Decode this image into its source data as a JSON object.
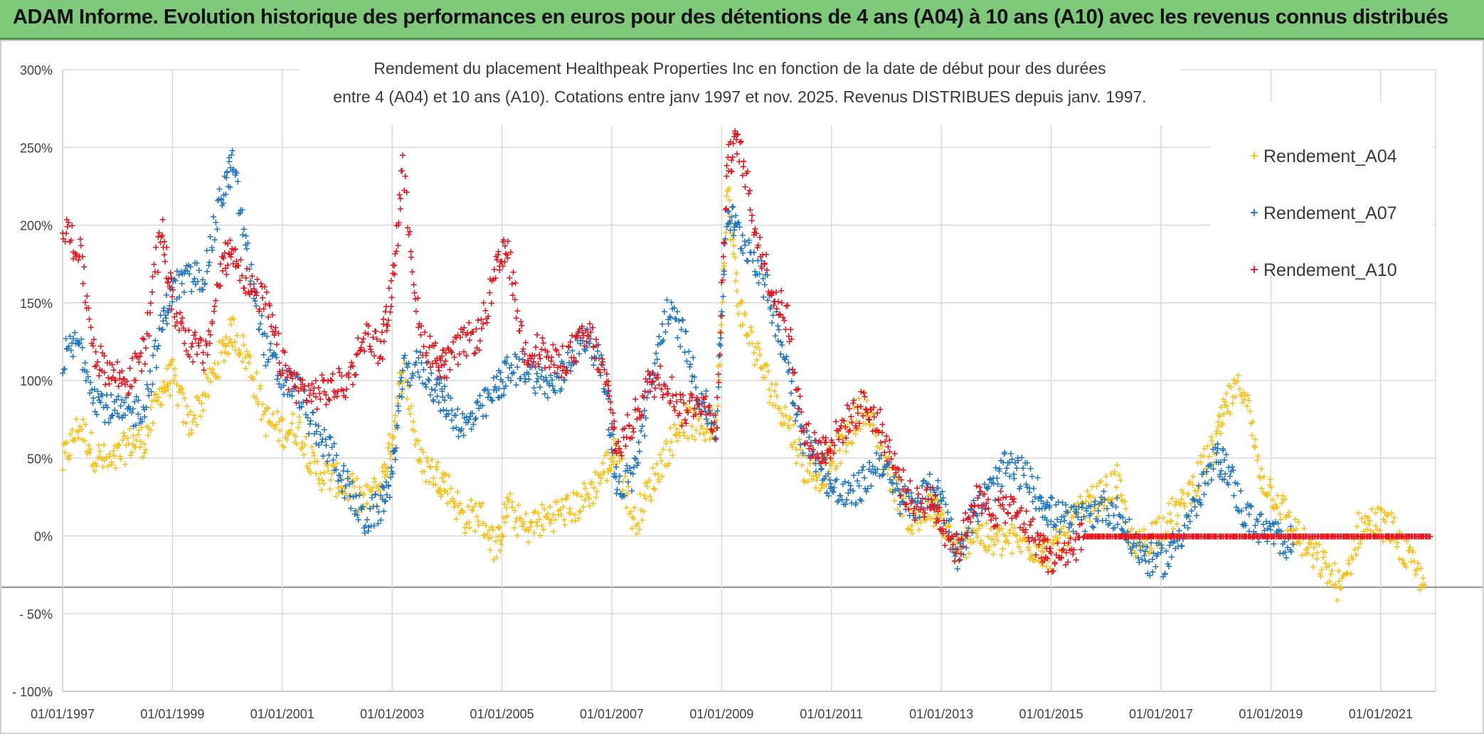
{
  "banner": {
    "title": "ADAM Informe. Evolution historique des performances en euros pour des détentions de 4 ans (A04) à 10 ans (A10) avec les revenus connus distribués"
  },
  "chart_data": {
    "type": "scatter",
    "title_line1": "Rendement du placement Healthpeak Properties Inc en fonction de la date de début pour des durées",
    "title_line2": "entre 4 (A04) et 10 ans (A10). Cotations entre janv 1997 et nov. 2025. Revenus DISTRIBUES depuis janv. 1997.",
    "xlabel": "",
    "ylabel": "",
    "xlim": [
      1997.0,
      2022.0
    ],
    "ylim": [
      -100,
      300
    ],
    "x_ticks": [
      "01/01/1997",
      "01/01/1999",
      "01/01/2001",
      "01/01/2003",
      "01/01/2005",
      "01/01/2007",
      "01/01/2009",
      "01/01/2011",
      "01/01/2013",
      "01/01/2015",
      "01/01/2017",
      "01/01/2019",
      "01/01/2021"
    ],
    "y_ticks": [
      "300%",
      "250%",
      "200%",
      "150%",
      "100%",
      "50%",
      "0%",
      "- 50%",
      "- 100%"
    ],
    "legend_position": "top-right",
    "grid": true,
    "series": [
      {
        "name": "Rendement_A04",
        "color": "#f5c21b",
        "x": [
          1997.0,
          1997.3,
          1997.6,
          1997.9,
          1998.2,
          1998.5,
          1998.8,
          1999.0,
          1999.3,
          1999.6,
          1999.9,
          2000.1,
          2000.4,
          2000.7,
          2001.0,
          2001.3,
          2001.6,
          2001.9,
          2002.2,
          2002.5,
          2002.8,
          2003.0,
          2003.2,
          2003.5,
          2003.8,
          2004.0,
          2004.3,
          2004.6,
          2004.9,
          2005.1,
          2005.4,
          2005.7,
          2006.0,
          2006.3,
          2006.6,
          2006.9,
          2007.1,
          2007.4,
          2007.7,
          2008.0,
          2008.3,
          2008.6,
          2008.9,
          2009.1,
          2009.3,
          2009.6,
          2009.9,
          2010.2,
          2010.5,
          2010.8,
          2011.0,
          2011.3,
          2011.6,
          2011.9,
          2012.2,
          2012.5,
          2012.8,
          2013.0,
          2013.3,
          2013.6,
          2013.9,
          2014.2,
          2014.5,
          2014.8,
          2015.0,
          2015.3,
          2015.6,
          2015.9,
          2016.2,
          2016.5,
          2016.8,
          2017.1,
          2017.4,
          2017.7,
          2018.0,
          2018.2,
          2018.5,
          2018.8,
          2019.1,
          2019.4,
          2019.7,
          2020.0,
          2020.3,
          2020.6,
          2020.9,
          2021.2,
          2021.5,
          2021.8
        ],
        "values": [
          47,
          72,
          52,
          46,
          60,
          62,
          95,
          103,
          72,
          92,
          118,
          133,
          112,
          75,
          68,
          70,
          42,
          38,
          32,
          22,
          33,
          63,
          112,
          48,
          40,
          33,
          12,
          15,
          -8,
          20,
          5,
          10,
          15,
          18,
          28,
          45,
          55,
          8,
          32,
          55,
          75,
          70,
          72,
          225,
          150,
          120,
          95,
          75,
          45,
          40,
          48,
          65,
          85,
          55,
          28,
          8,
          18,
          12,
          -12,
          5,
          -5,
          -2,
          -4,
          -8,
          -12,
          5,
          18,
          25,
          35,
          -10,
          0,
          10,
          20,
          40,
          60,
          85,
          98,
          40,
          25,
          5,
          -10,
          -20,
          -35,
          5,
          10,
          5,
          -15,
          -32
        ]
      },
      {
        "name": "Rendement_A07",
        "color": "#1f78c1",
        "x": [
          1997.0,
          1997.3,
          1997.6,
          1997.9,
          1998.2,
          1998.5,
          1998.8,
          1999.0,
          1999.3,
          1999.6,
          1999.9,
          2000.1,
          2000.4,
          2000.7,
          2001.0,
          2001.3,
          2001.6,
          2001.9,
          2002.2,
          2002.5,
          2002.8,
          2003.0,
          2003.2,
          2003.5,
          2003.8,
          2004.0,
          2004.3,
          2004.6,
          2004.9,
          2005.1,
          2005.4,
          2005.7,
          2006.0,
          2006.3,
          2006.6,
          2006.9,
          2007.1,
          2007.4,
          2007.7,
          2008.0,
          2008.3,
          2008.6,
          2008.9,
          2009.1,
          2009.3,
          2009.6,
          2009.9,
          2010.2,
          2010.5,
          2010.8,
          2011.0,
          2011.3,
          2011.6,
          2011.9,
          2012.2,
          2012.5,
          2012.8,
          2013.0,
          2013.3,
          2013.6,
          2013.9,
          2014.2,
          2014.5,
          2014.8,
          2015.0,
          2015.3,
          2015.6,
          2015.9,
          2016.2,
          2016.5,
          2016.8,
          2017.1,
          2017.4,
          2017.7,
          2018.0,
          2018.2,
          2018.5,
          2018.8,
          2019.1,
          2019.4
        ],
        "values": [
          115,
          125,
          90,
          80,
          78,
          85,
          135,
          160,
          165,
          170,
          220,
          240,
          175,
          120,
          100,
          95,
          65,
          55,
          30,
          10,
          20,
          40,
          105,
          110,
          95,
          85,
          70,
          80,
          95,
          105,
          110,
          100,
          95,
          120,
          130,
          95,
          30,
          40,
          95,
          145,
          130,
          90,
          70,
          210,
          195,
          180,
          150,
          110,
          60,
          50,
          30,
          25,
          35,
          50,
          25,
          20,
          30,
          25,
          -10,
          15,
          30,
          45,
          40,
          25,
          15,
          10,
          10,
          20,
          15,
          -5,
          -15,
          -15,
          5,
          25,
          50,
          45,
          15,
          5,
          0,
          -5
        ]
      },
      {
        "name": "Rendement_A10",
        "color": "#e8141c",
        "x": [
          1997.0,
          1997.3,
          1997.6,
          1997.9,
          1998.2,
          1998.5,
          1998.8,
          1999.0,
          1999.3,
          1999.6,
          1999.9,
          2000.1,
          2000.4,
          2000.7,
          2001.0,
          2001.3,
          2001.6,
          2001.9,
          2002.2,
          2002.5,
          2002.8,
          2003.0,
          2003.2,
          2003.5,
          2003.8,
          2004.0,
          2004.3,
          2004.6,
          2004.9,
          2005.1,
          2005.4,
          2005.7,
          2006.0,
          2006.3,
          2006.6,
          2006.9,
          2007.1,
          2007.4,
          2007.7,
          2008.0,
          2008.3,
          2008.6,
          2008.9,
          2009.1,
          2009.3,
          2009.6,
          2009.9,
          2010.2,
          2010.5,
          2010.8,
          2011.0,
          2011.3,
          2011.6,
          2011.9,
          2012.2,
          2012.5,
          2012.8,
          2013.0,
          2013.3,
          2013.6,
          2013.9,
          2014.2,
          2014.5,
          2014.8,
          2015.0,
          2015.3,
          2015.6,
          2015.9,
          2016.2,
          2016.5,
          2016.8,
          2017.1,
          2017.4,
          2017.7,
          2018.0,
          2018.3,
          2018.6,
          2018.9,
          2019.2,
          2019.5,
          2019.8,
          2020.1,
          2020.4,
          2020.7,
          2021.0,
          2021.3,
          2021.6,
          2021.9
        ],
        "values": [
          200,
          185,
          115,
          105,
          100,
          120,
          200,
          150,
          125,
          115,
          175,
          185,
          160,
          150,
          110,
          95,
          92,
          95,
          100,
          130,
          120,
          160,
          235,
          130,
          115,
          110,
          125,
          130,
          170,
          185,
          120,
          120,
          110,
          120,
          130,
          100,
          55,
          75,
          100,
          100,
          80,
          90,
          70,
          240,
          255,
          200,
          160,
          140,
          65,
          55,
          60,
          75,
          85,
          70,
          40,
          20,
          25,
          10,
          -10,
          25,
          15,
          20,
          10,
          -5,
          -15,
          -10,
          0,
          0,
          0,
          0,
          0,
          0,
          0,
          0,
          0,
          0,
          0,
          0,
          0,
          0,
          0,
          0,
          0,
          0,
          0,
          0,
          0,
          0
        ]
      }
    ]
  }
}
